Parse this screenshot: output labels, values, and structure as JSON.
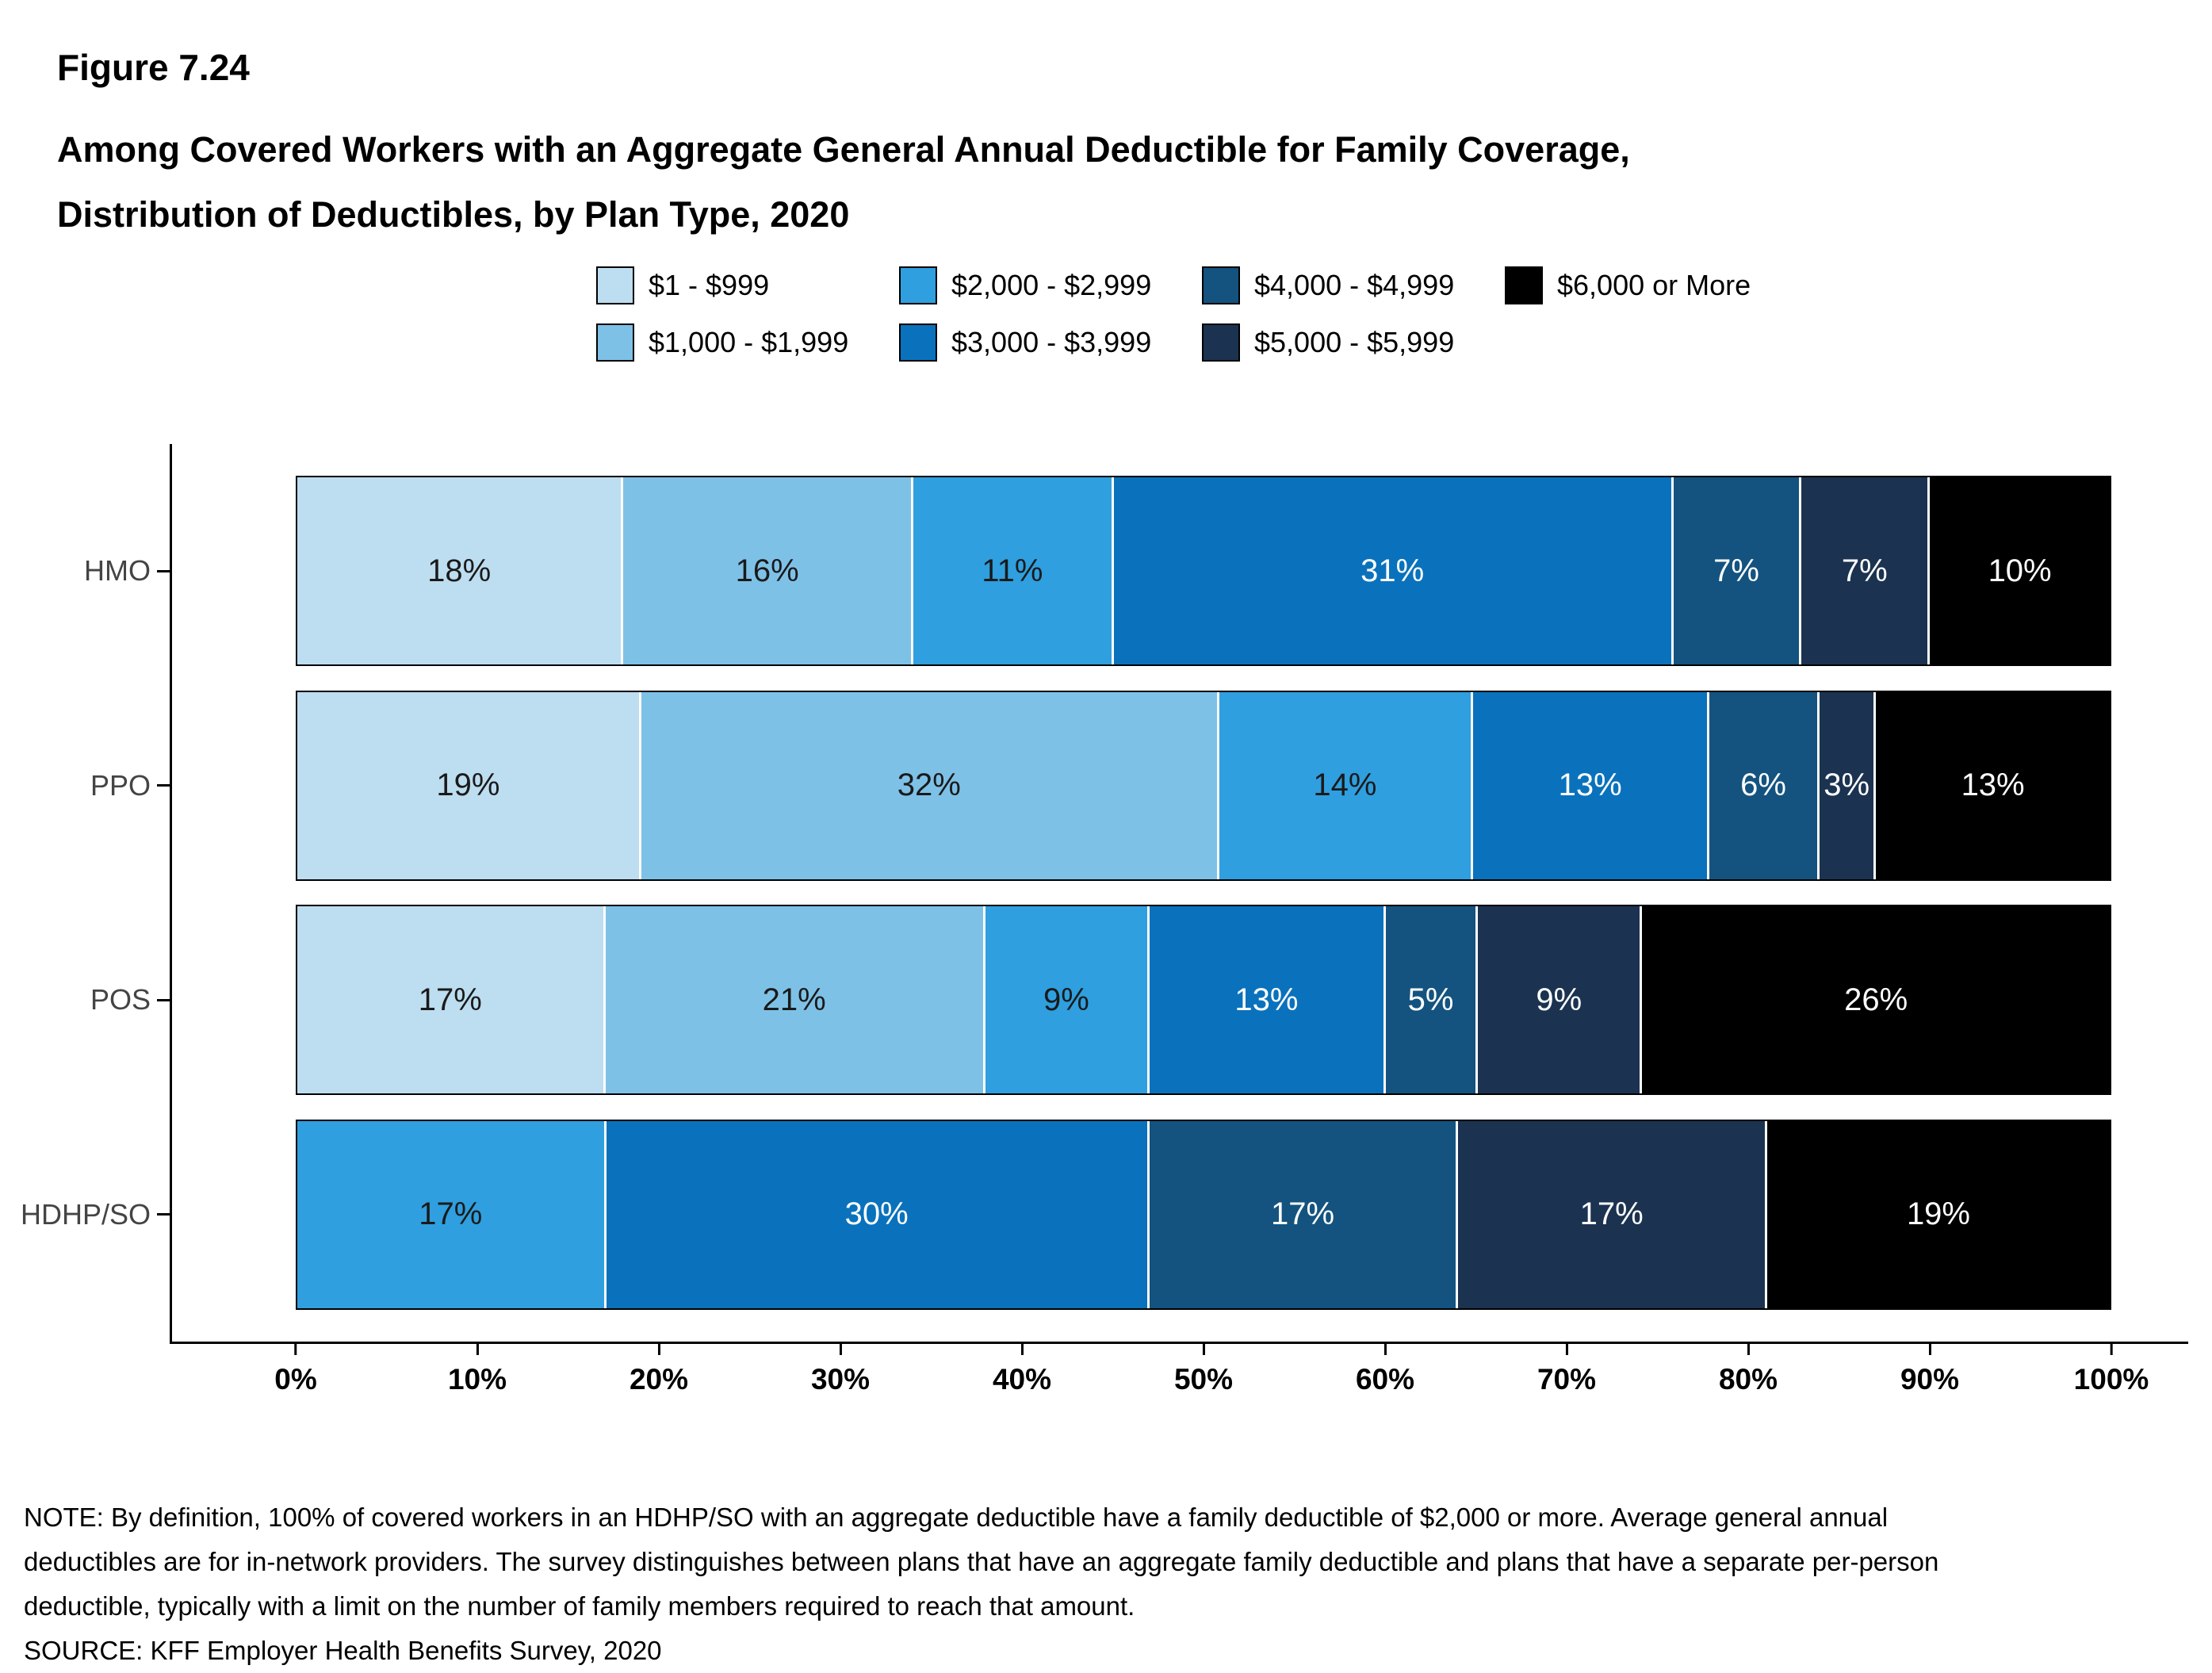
{
  "figure": {
    "number": "Figure 7.24",
    "title_lines": [
      "Among Covered Workers with an Aggregate General Annual Deductible for Family Coverage,",
      "Distribution of Deductibles, by Plan Type, 2020"
    ]
  },
  "chart_data": {
    "type": "bar",
    "orientation": "horizontal",
    "stacked": true,
    "title": "Among Covered Workers with an Aggregate General Annual Deductible for Family Coverage, Distribution of Deductibles, by Plan Type, 2020",
    "xlabel": "",
    "ylabel": "",
    "unit": "%",
    "xlim": [
      0,
      100
    ],
    "grid": false,
    "legend_position": "top",
    "categories": [
      "HMO",
      "PPO",
      "POS",
      "HDHP/SO"
    ],
    "x_ticks": [
      "0%",
      "10%",
      "20%",
      "30%",
      "40%",
      "50%",
      "60%",
      "70%",
      "80%",
      "90%",
      "100%"
    ],
    "series": [
      {
        "name": "$1 - $999",
        "color": "#BDDDF0",
        "label_text_color": "#1a1a1a",
        "values": [
          18,
          19,
          17,
          0
        ]
      },
      {
        "name": "$1,000 - $1,999",
        "color": "#7EC1E7",
        "label_text_color": "#1a1a1a",
        "values": [
          16,
          32,
          21,
          0
        ]
      },
      {
        "name": "$2,000 - $2,999",
        "color": "#2F9FDF",
        "label_text_color": "#1a1a1a",
        "values": [
          11,
          14,
          9,
          17
        ]
      },
      {
        "name": "$3,000 - $3,999",
        "color": "#0A72BC",
        "label_text_color": "#ffffff",
        "values": [
          31,
          13,
          13,
          30
        ]
      },
      {
        "name": "$4,000 - $4,999",
        "color": "#14537F",
        "label_text_color": "#ffffff",
        "values": [
          7,
          6,
          5,
          17
        ]
      },
      {
        "name": "$5,000 - $5,999",
        "color": "#1B3350",
        "label_text_color": "#ffffff",
        "values": [
          7,
          3,
          9,
          17
        ]
      },
      {
        "name": "$6,000 or More",
        "color": "#000000",
        "label_text_color": "#ffffff",
        "values": [
          10,
          13,
          26,
          19
        ]
      }
    ]
  },
  "notes": {
    "note": "NOTE: By definition, 100% of covered workers in an HDHP/SO with an aggregate deductible have a family deductible of $2,000 or more. Average general annual deductibles are for in-network providers. The survey distinguishes between plans that have an aggregate family deductible and plans that have a separate per-person deductible, typically with a limit on the number of family members required to reach that amount.",
    "source": "SOURCE: KFF Employer Health Benefits Survey, 2020"
  }
}
